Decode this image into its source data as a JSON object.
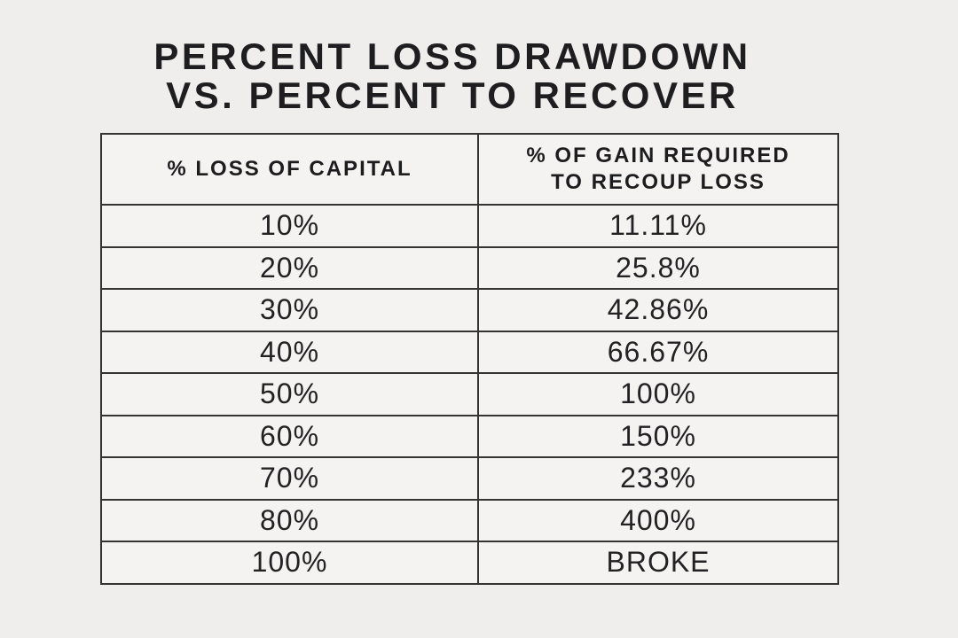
{
  "title": {
    "line1": "PERCENT LOSS DRAWDOWN",
    "line2": "VS. PERCENT TO RECOVER"
  },
  "table": {
    "header_loss": "% LOSS OF CAPITAL",
    "header_gain_line1": "% OF GAIN REQUIRED",
    "header_gain_line2": "TO RECOUP LOSS",
    "rows": [
      {
        "loss": "10%",
        "gain": "11.11%"
      },
      {
        "loss": "20%",
        "gain": "25.8%"
      },
      {
        "loss": "30%",
        "gain": "42.86%"
      },
      {
        "loss": "40%",
        "gain": "66.67%"
      },
      {
        "loss": "50%",
        "gain": "100%"
      },
      {
        "loss": "60%",
        "gain": "150%"
      },
      {
        "loss": "70%",
        "gain": "233%"
      },
      {
        "loss": "80%",
        "gain": "400%"
      },
      {
        "loss": "100%",
        "gain": "BROKE"
      }
    ]
  },
  "colors": {
    "background": "#efeeec",
    "cell_background": "#f4f3f1",
    "border": "#333333",
    "text": "#1d1d1f"
  },
  "chart_data": {
    "type": "table",
    "title": "PERCENT LOSS DRAWDOWN VS. PERCENT TO RECOVER",
    "columns": [
      "% LOSS OF CAPITAL",
      "% OF GAIN REQUIRED TO RECOUP LOSS"
    ],
    "rows": [
      [
        "10%",
        "11.11%"
      ],
      [
        "20%",
        "25.8%"
      ],
      [
        "30%",
        "42.86%"
      ],
      [
        "40%",
        "66.67%"
      ],
      [
        "50%",
        "100%"
      ],
      [
        "60%",
        "150%"
      ],
      [
        "70%",
        "233%"
      ],
      [
        "80%",
        "400%"
      ],
      [
        "100%",
        "BROKE"
      ]
    ]
  }
}
